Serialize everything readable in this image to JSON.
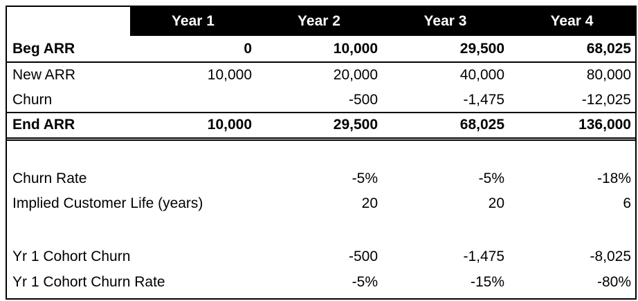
{
  "table": {
    "header": [
      "Year 1",
      "Year 2",
      "Year 3",
      "Year 4"
    ],
    "rows": [
      [
        "Beg ARR",
        "0",
        "10,000",
        "29,500",
        "68,025"
      ],
      [
        "New ARR",
        "10,000",
        "20,000",
        "40,000",
        "80,000"
      ],
      [
        "Churn",
        null,
        "-500",
        "-1,475",
        "-12,025"
      ],
      [
        "End ARR",
        "10,000",
        "29,500",
        "68,025",
        "136,000"
      ],
      [
        "Churn Rate",
        null,
        "-5%",
        "-5%",
        "-18%"
      ],
      [
        "Implied Customer Life (years)",
        null,
        "20",
        "20",
        "6"
      ],
      [
        "Yr 1 Cohort Churn",
        null,
        "-500",
        "-1,475",
        "-8,025"
      ],
      [
        "Yr 1 Cohort Churn Rate",
        null,
        "-5%",
        "-15%",
        "-80%"
      ]
    ]
  }
}
